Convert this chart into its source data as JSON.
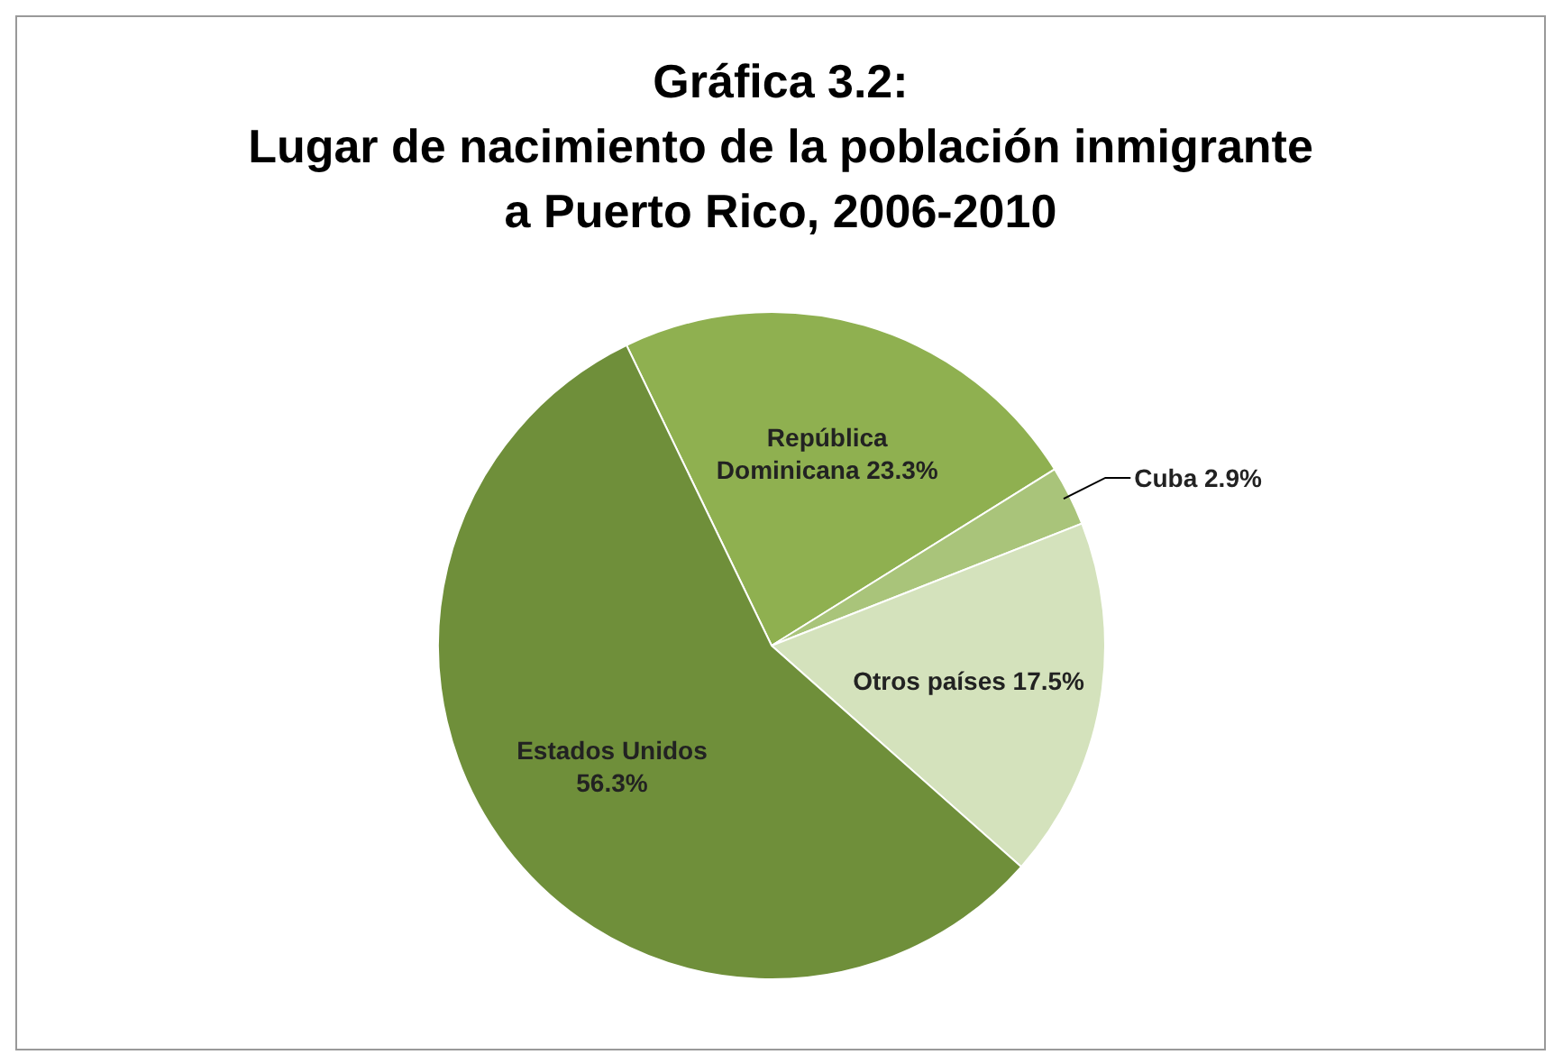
{
  "chart_data": {
    "type": "pie",
    "title": "Gráfica 3.2:\nLugar de nacimiento de la población inmigrante\na Puerto Rico, 2006-2010",
    "categories": [
      "República\nDominicana",
      "Cuba",
      "Otros países",
      "Estados Unidos\n"
    ],
    "values": [
      23.3,
      2.9,
      17.5,
      56.3
    ],
    "value_labels": [
      "23.3%",
      "2.9%",
      "17.5%",
      "56.3%"
    ],
    "colors": [
      "#8fb050",
      "#a9c47a",
      "#d4e2bc",
      "#6f8f3a"
    ]
  }
}
